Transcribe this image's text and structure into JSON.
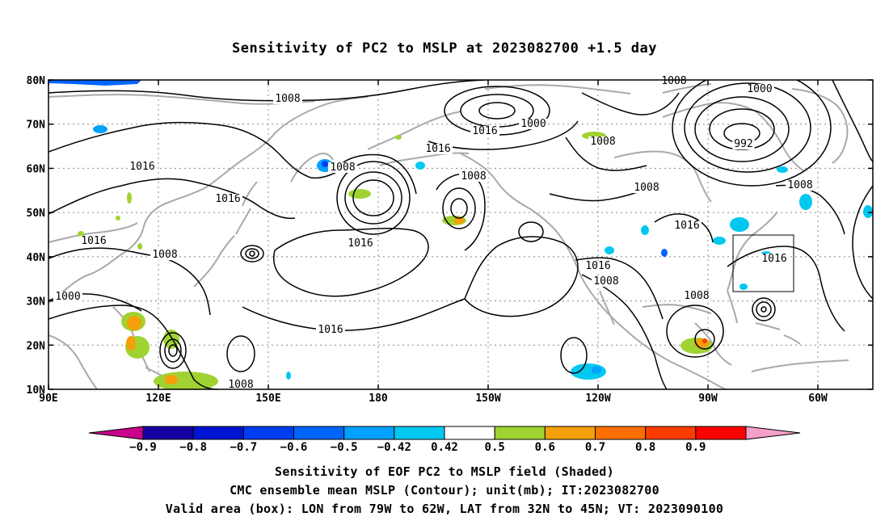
{
  "title": "Sensitivity of PC2 to MSLP at 2023082700 +1.5 day",
  "map": {
    "lat_range": [
      10,
      80
    ],
    "lon_range_east": [
      90,
      315
    ],
    "y_ticks": [
      "10N",
      "20N",
      "30N",
      "40N",
      "50N",
      "60N",
      "70N",
      "80N"
    ],
    "x_ticks": [
      "90E",
      "120E",
      "150E",
      "180",
      "150W",
      "120W",
      "90W",
      "60W"
    ],
    "contour_unit": "mb",
    "contour_labels": [
      "1008",
      "1000",
      "1008",
      "992",
      "1000",
      "1008",
      "1016",
      "1008",
      "1016",
      "1016",
      "1008",
      "1016",
      "1008",
      "1000",
      "1016",
      "1016",
      "1016",
      "1008",
      "1016",
      "1016",
      "1016",
      "1008",
      "1008",
      "1008",
      "1008"
    ],
    "valid_box": {
      "lon_west": -79,
      "lon_east": -62,
      "lat_south": 32,
      "lat_north": 45
    },
    "colors": {
      "land": "#a9a9a9",
      "contour": "#000000",
      "grid": "#888888"
    }
  },
  "colorbar": {
    "labels": [
      "-0.9",
      "-0.8",
      "-0.7",
      "-0.6",
      "-0.5",
      "-0.42",
      "0.42",
      "0.5",
      "0.6",
      "0.7",
      "0.8",
      "0.9"
    ],
    "colors": [
      "#c8008c",
      "#1400a0",
      "#0014d2",
      "#003cf0",
      "#0064ff",
      "#00a0ff",
      "#00c8f0",
      "#ffffff",
      "#a0d232",
      "#f5a00a",
      "#ff6e00",
      "#ff3c00",
      "#ff0000",
      "#f5a0c8"
    ]
  },
  "captions": {
    "line1": "Sensitivity of EOF PC2 to MSLP field (Shaded)",
    "line2": "CMC ensemble mean MSLP (Contour); unit(mb); IT:2023082700",
    "line3": "Valid area (box): LON from 79W to 62W, LAT from 32N to 45N; VT: 2023090100"
  }
}
